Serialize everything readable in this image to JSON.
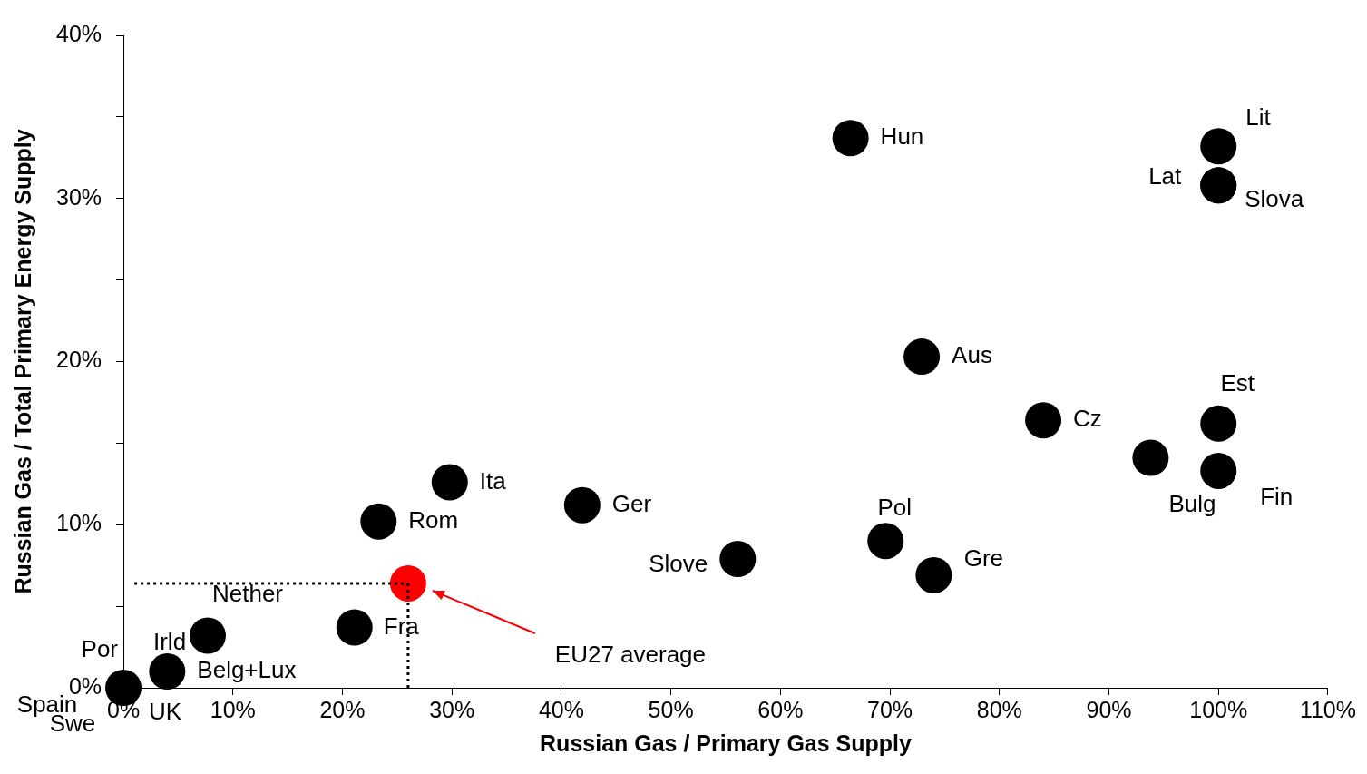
{
  "chart_data": {
    "type": "scatter",
    "xlabel": "Russian Gas / Primary Gas Supply",
    "ylabel": "Russian Gas / Total Primary Energy Supply",
    "xlim": [
      0,
      110
    ],
    "ylim": [
      0,
      40
    ],
    "xticks": [
      {
        "value": 0,
        "label": "0%"
      },
      {
        "value": 10,
        "label": "10%"
      },
      {
        "value": 20,
        "label": "20%"
      },
      {
        "value": 30,
        "label": "30%"
      },
      {
        "value": 40,
        "label": "40%"
      },
      {
        "value": 50,
        "label": "50%"
      },
      {
        "value": 60,
        "label": "60%"
      },
      {
        "value": 70,
        "label": "70%"
      },
      {
        "value": 80,
        "label": "80%"
      },
      {
        "value": 90,
        "label": "90%"
      },
      {
        "value": 100,
        "label": "100%"
      },
      {
        "value": 110,
        "label": "110%"
      }
    ],
    "yticks": [
      {
        "value": 0,
        "label": "0%"
      },
      {
        "value": 5,
        "label": null
      },
      {
        "value": 10,
        "label": "10%"
      },
      {
        "value": 15,
        "label": null
      },
      {
        "value": 20,
        "label": "20%"
      },
      {
        "value": 25,
        "label": null
      },
      {
        "value": 30,
        "label": "30%"
      },
      {
        "value": 35,
        "label": null
      },
      {
        "value": 40,
        "label": "40%"
      }
    ],
    "grid": false,
    "legend": false,
    "marker": "circle",
    "series": [
      {
        "type": "scatter",
        "color": "#000000",
        "x": [
          66.4,
          100,
          100,
          100,
          72.9,
          84.0,
          100,
          93.8,
          100,
          29.8,
          41.9,
          23.3,
          69.6,
          56.1,
          74.0,
          21.1,
          7.7,
          4.0,
          0
        ],
        "values": [
          33.7,
          33.2,
          30.8,
          30.8,
          20.3,
          16.4,
          16.2,
          14.1,
          13.3,
          12.6,
          11.2,
          10.2,
          9.0,
          7.9,
          6.9,
          3.7,
          3.2,
          1.0,
          0
        ],
        "value_labels": [
          "Hun",
          "Lit",
          "Lat",
          "Slova",
          "Aus",
          "Cz",
          "Est",
          "Bulg",
          "Fin",
          "Ita",
          "Ger",
          "Rom",
          "Pol",
          "Slove",
          "Gre",
          "Fra",
          "Nether",
          "Belg+Lux",
          "Spain"
        ]
      },
      {
        "type": "line",
        "color": "#000000",
        "line_style": "dotted",
        "marker": "none",
        "x": [
          1,
          26
        ],
        "values": [
          6.4,
          6.4
        ]
      },
      {
        "type": "line",
        "color": "#000000",
        "line_style": "dotted",
        "marker": "none",
        "x": [
          26,
          26
        ],
        "values": [
          6.4,
          0
        ]
      },
      {
        "type": "scatter",
        "color": "#ff0000",
        "x": [
          26
        ],
        "values": [
          6.4
        ]
      }
    ],
    "annotations": [
      "EU27 average",
      "Por",
      "Irld",
      "Swe",
      "UK"
    ]
  }
}
